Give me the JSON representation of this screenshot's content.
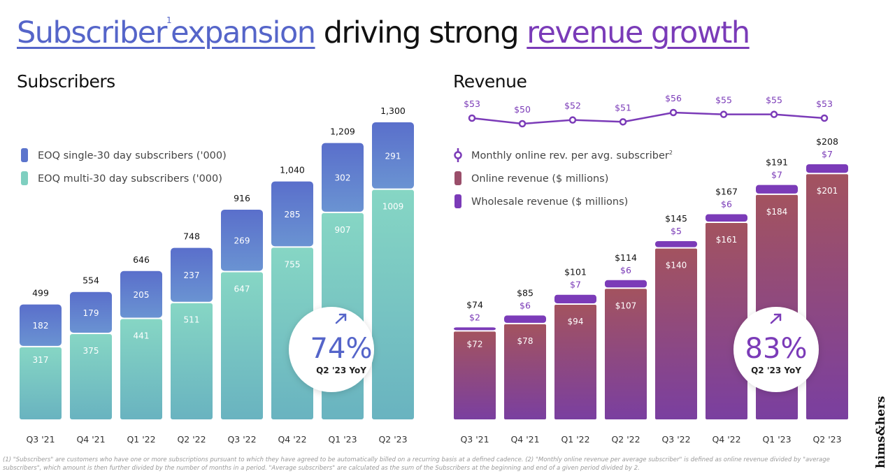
{
  "title": {
    "part1": "Subscriber",
    "sup": "1",
    "part2": "expansion",
    "part3": " driving strong ",
    "part4": "revenue growth"
  },
  "chart_data": [
    {
      "type": "bar",
      "title": "Subscribers",
      "stacked": true,
      "categories": [
        "Q3 '21",
        "Q4 '21",
        "Q1 '22",
        "Q2 '22",
        "Q3 '22",
        "Q4 '22",
        "Q1 '23",
        "Q2 '23"
      ],
      "series": [
        {
          "name": "EOQ multi-30 day subscribers  ('000)",
          "values": [
            317,
            375,
            441,
            511,
            647,
            755,
            907,
            1009
          ],
          "color": "#7fcfc0"
        },
        {
          "name": "EOQ single-30 day subscribers ('000)",
          "values": [
            182,
            179,
            205,
            237,
            269,
            285,
            302,
            291
          ],
          "color": "#5b74cc"
        }
      ],
      "totals": [
        499,
        554,
        646,
        748,
        916,
        1040,
        1209,
        1300
      ],
      "callout": {
        "value": "74%",
        "label": "Q2 '23 YoY"
      }
    },
    {
      "type": "bar",
      "title": "Revenue",
      "stacked": true,
      "categories": [
        "Q3 '21",
        "Q4 '21",
        "Q1 '22",
        "Q2 '22",
        "Q3 '22",
        "Q4 '22",
        "Q1 '23",
        "Q2 '23"
      ],
      "series": [
        {
          "name": "Online revenue ($ millions)",
          "values": [
            72,
            78,
            94,
            107,
            140,
            161,
            184,
            201
          ],
          "color": "#9a4e6a"
        },
        {
          "name": "Wholesale revenue ($ millions)",
          "values": [
            2,
            6,
            7,
            6,
            5,
            6,
            7,
            7
          ],
          "color": "#7b3bb8"
        }
      ],
      "totals": [
        74,
        85,
        101,
        114,
        145,
        167,
        191,
        208
      ],
      "line": {
        "name": "Monthly online rev. per avg. subscriber",
        "sup": "2",
        "values": [
          53,
          50,
          52,
          51,
          56,
          55,
          55,
          53
        ],
        "color": "#7b3bb8"
      },
      "callout": {
        "value": "83%",
        "label": "Q2 '23 YoY"
      }
    }
  ],
  "footnote": "(1) \"Subscribers\" are customers who have one or more subscriptions pursuant to which they have agreed to be automatically billed on a recurring basis at a defined cadence. (2) \"Monthly online revenue per average subscriber\" is defined as online revenue divided by \"average subscribers\", which amount is then further divided by the number of months in a period. \"Average subscribers\" are calculated as the sum of the Subscribers at the beginning and end of a given period divided by 2.",
  "logo": "hims&hers"
}
